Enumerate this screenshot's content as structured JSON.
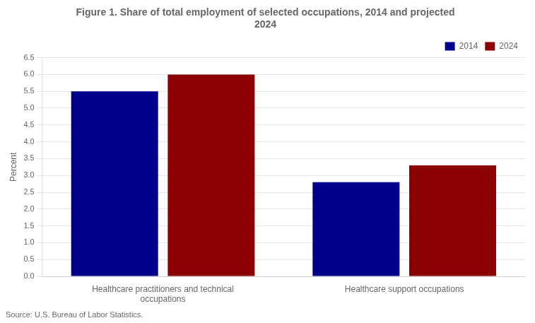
{
  "chart_data": {
    "type": "bar",
    "title": [
      "Figure 1. Share of total employment of selected occupations, 2014 and projected",
      "2024"
    ],
    "ylabel": "Percent",
    "annotations": [
      "Source: U.S. Bureau of Labor Statistics."
    ],
    "categories": [
      "Healthcare practitioners and technical\noccupations",
      "Healthcare support occupations"
    ],
    "series": [
      {
        "name": "2014",
        "color": "#00008B",
        "values": [
          5.5,
          2.8
        ]
      },
      {
        "name": "2024",
        "color": "#8B0000",
        "values": [
          6.0,
          3.3
        ]
      }
    ],
    "ylim": [
      0,
      6.5
    ],
    "yticks": [
      {
        "value": 0,
        "label": "0.0"
      },
      0.5,
      {
        "value": 1,
        "label": "1.0"
      },
      1.5,
      {
        "value": 2,
        "label": "2.0"
      },
      2.5,
      {
        "value": 3,
        "label": "3.0"
      },
      3.5,
      {
        "value": 4,
        "label": "4.0"
      },
      4.5,
      {
        "value": 5,
        "label": "5.0"
      },
      5.5,
      {
        "value": 6,
        "label": "6.0"
      },
      6.5
    ],
    "grid": true,
    "legend": "upper right"
  }
}
